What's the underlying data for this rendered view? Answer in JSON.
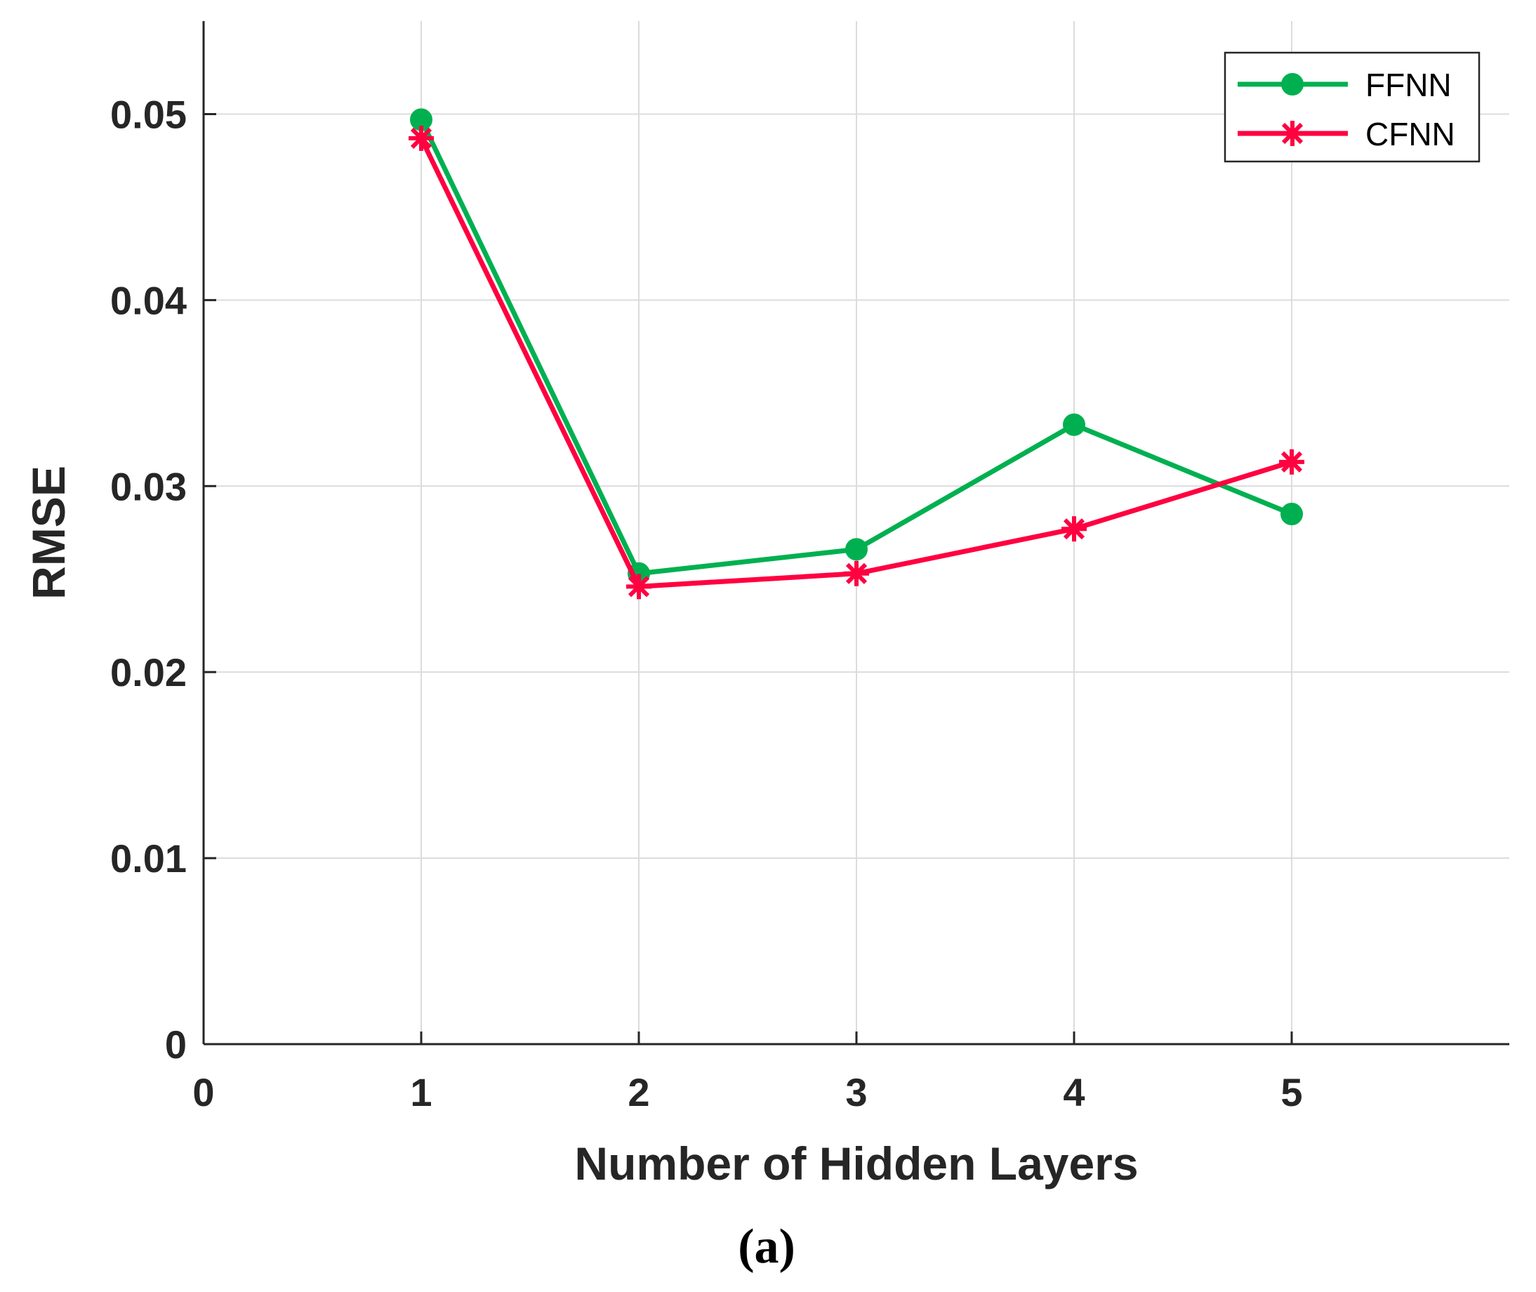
{
  "chart_data": {
    "type": "line",
    "xlabel": "Number of Hidden Layers",
    "ylabel": "RMSE",
    "caption": "(a)",
    "xlim": [
      0,
      6
    ],
    "ylim": [
      0,
      0.055
    ],
    "x_ticks": [
      "0",
      "1",
      "2",
      "3",
      "4",
      "5"
    ],
    "y_ticks": [
      "0",
      "0.01",
      "0.02",
      "0.03",
      "0.04",
      "0.05"
    ],
    "grid": true,
    "legend_position": "top-right",
    "series": [
      {
        "name": "FFNN",
        "color": "#00b050",
        "marker": "circle",
        "x": [
          1,
          2,
          3,
          4,
          5
        ],
        "values": [
          0.0497,
          0.0253,
          0.0266,
          0.0333,
          0.0285
        ]
      },
      {
        "name": "CFNN",
        "color": "#ff0040",
        "marker": "asterisk",
        "x": [
          1,
          2,
          3,
          4,
          5
        ],
        "values": [
          0.0487,
          0.0246,
          0.0253,
          0.0277,
          0.0313
        ]
      }
    ]
  }
}
